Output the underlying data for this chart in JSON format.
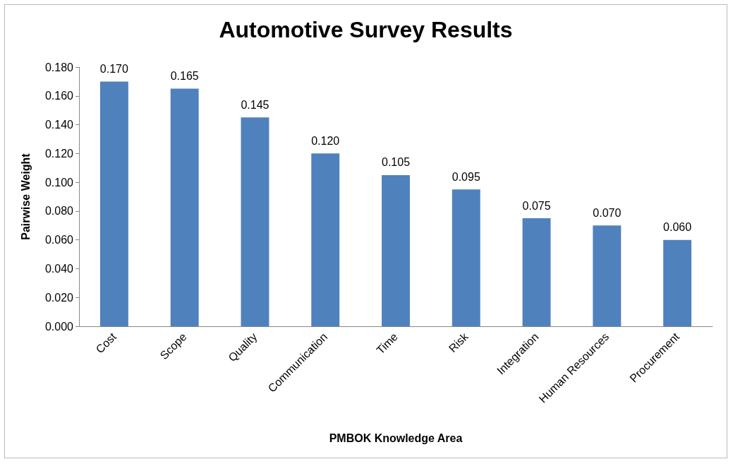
{
  "chart_data": {
    "type": "bar",
    "title": "Automotive Survey Results",
    "xlabel": "PMBOK Knowledge Area",
    "ylabel": "Pairwise Weight",
    "categories": [
      "Cost",
      "Scope",
      "Quality",
      "Communication",
      "Time",
      "Risk",
      "Integration",
      "Human Resources",
      "Procurement"
    ],
    "values": [
      0.17,
      0.165,
      0.145,
      0.12,
      0.105,
      0.095,
      0.075,
      0.07,
      0.06
    ],
    "value_labels": [
      "0.170",
      "0.165",
      "0.145",
      "0.120",
      "0.105",
      "0.095",
      "0.075",
      "0.070",
      "0.060"
    ],
    "color": "#4f81bd",
    "ylim": [
      0,
      0.18
    ],
    "yticks": [
      {
        "value": 0,
        "label": "0.000"
      },
      {
        "value": 0.02,
        "label": "0.020"
      },
      {
        "value": 0.04,
        "label": "0.040"
      },
      {
        "value": 0.06,
        "label": "0.060"
      },
      {
        "value": 0.08,
        "label": "0.080"
      },
      {
        "value": 0.1,
        "label": "0.100"
      },
      {
        "value": 0.12,
        "label": "0.120"
      },
      {
        "value": 0.14,
        "label": "0.140"
      },
      {
        "value": 0.16,
        "label": "0.160"
      },
      {
        "value": 0.18,
        "label": "0.180"
      }
    ],
    "grid": false
  }
}
